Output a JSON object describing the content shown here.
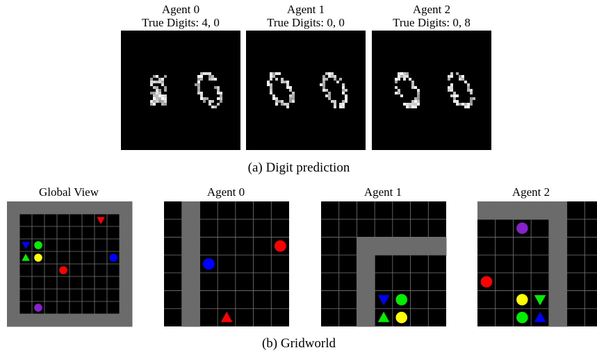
{
  "digit_panel": {
    "agents": [
      {
        "title": "Agent 0",
        "subtitle": "True Digits: 4, 0"
      },
      {
        "title": "Agent 1",
        "subtitle": "True Digits: 0, 0"
      },
      {
        "title": "Agent 2",
        "subtitle": "True Digits: 0, 8"
      }
    ],
    "caption": "(a) Digit prediction"
  },
  "gridworld_panel": {
    "views": [
      "Global View",
      "Agent 0",
      "Agent 1",
      "Agent 2"
    ],
    "caption": "(b) Gridworld"
  }
}
